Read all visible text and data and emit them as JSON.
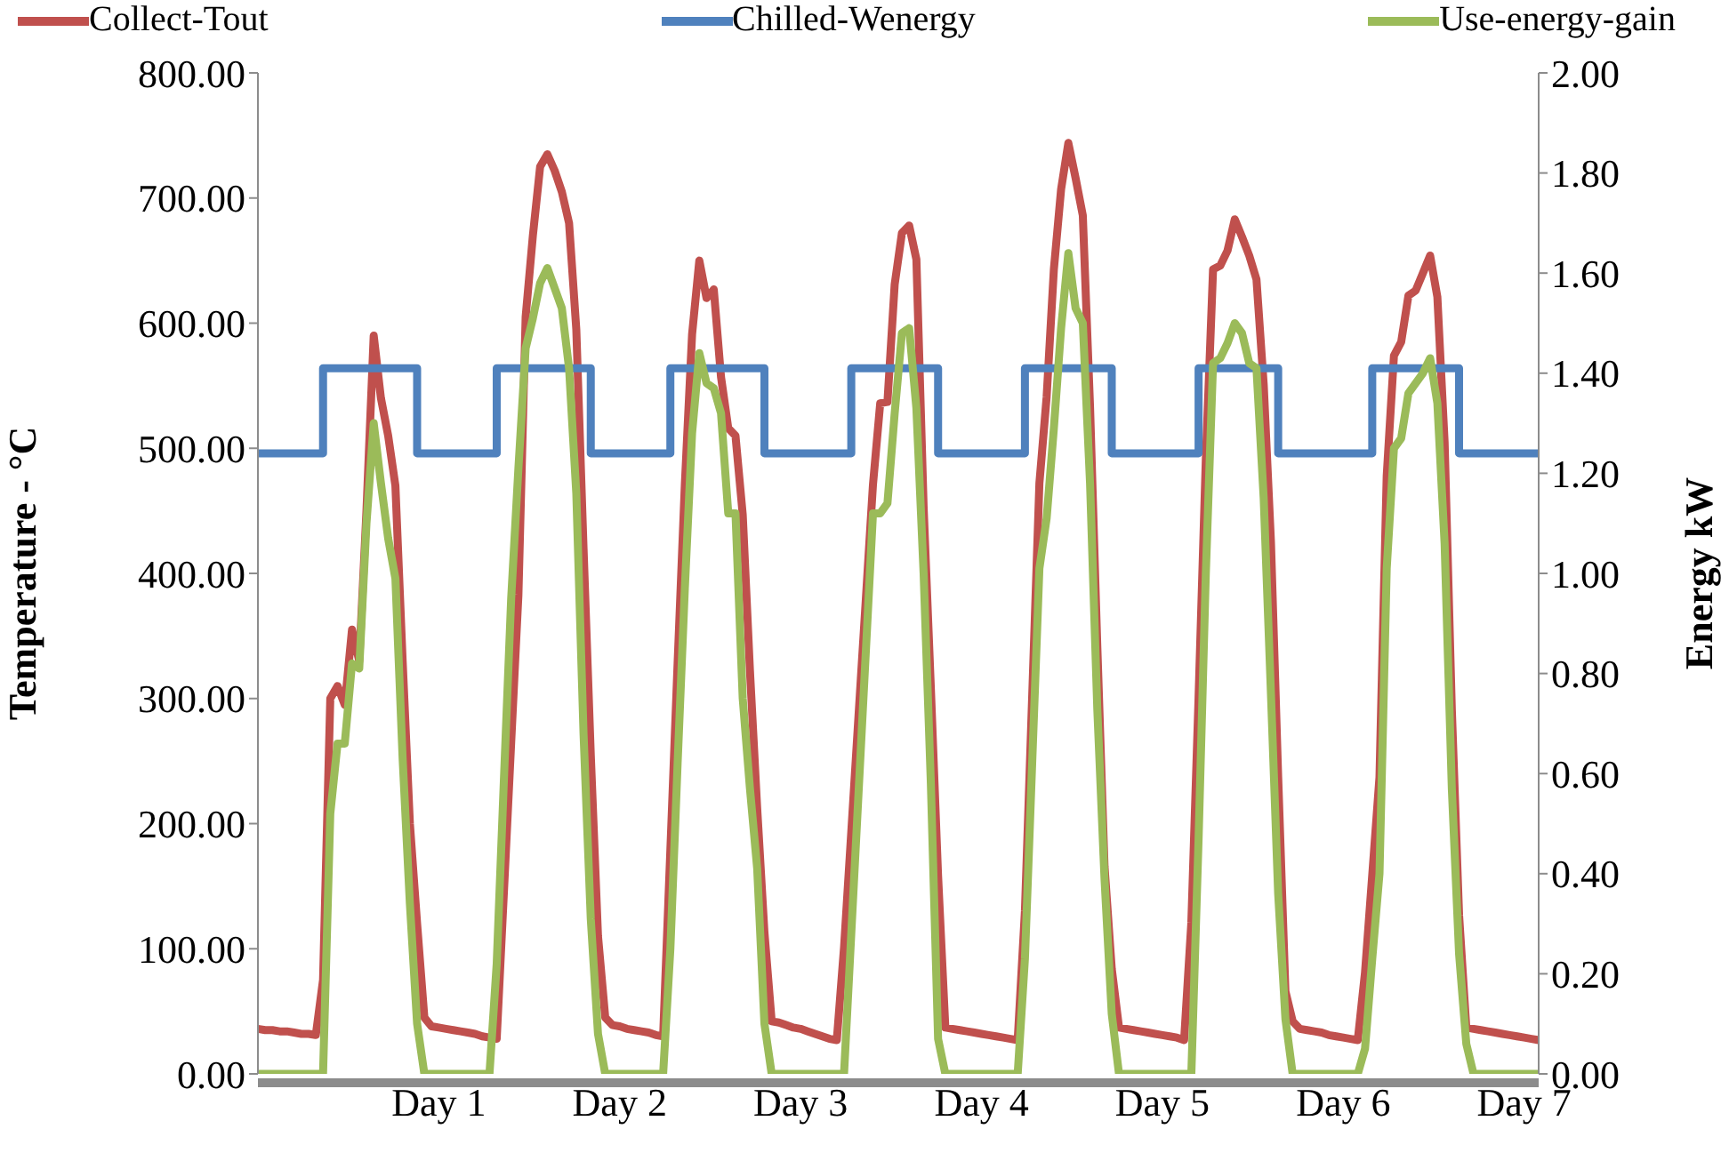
{
  "chart_data": {
    "type": "line",
    "ylabel": "Temperature - °C",
    "y2label": "Energy kW",
    "legend": "top",
    "grid": false,
    "marker": "none",
    "line_style": "solid",
    "categories": [
      null,
      null,
      null,
      null,
      null,
      null,
      null,
      null,
      null,
      null,
      null,
      null,
      null,
      null,
      null,
      null,
      null,
      null,
      null,
      null,
      null,
      null,
      null,
      null,
      null,
      "Day 1",
      null,
      null,
      null,
      null,
      null,
      null,
      null,
      null,
      null,
      null,
      null,
      null,
      null,
      null,
      null,
      null,
      null,
      null,
      null,
      null,
      null,
      null,
      null,
      null,
      "Day 2",
      null,
      null,
      null,
      null,
      null,
      null,
      null,
      null,
      null,
      null,
      null,
      null,
      null,
      null,
      null,
      null,
      null,
      null,
      null,
      null,
      null,
      null,
      null,
      null,
      "Day 3",
      null,
      null,
      null,
      null,
      null,
      null,
      null,
      null,
      null,
      null,
      null,
      null,
      null,
      null,
      null,
      null,
      null,
      null,
      null,
      null,
      null,
      null,
      null,
      null,
      "Day 4",
      null,
      null,
      null,
      null,
      null,
      null,
      null,
      null,
      null,
      null,
      null,
      null,
      null,
      null,
      null,
      null,
      null,
      null,
      null,
      null,
      null,
      null,
      null,
      null,
      "Day 5",
      null,
      null,
      null,
      null,
      null,
      null,
      null,
      null,
      null,
      null,
      null,
      null,
      null,
      null,
      null,
      null,
      null,
      null,
      null,
      null,
      null,
      null,
      null,
      null,
      "Day 6",
      null,
      null,
      null,
      null,
      null,
      null,
      null,
      null,
      null,
      null,
      null,
      null,
      null,
      null,
      null,
      null,
      null,
      null,
      null,
      null,
      null,
      null,
      null,
      null,
      "Day 7",
      null,
      null
    ],
    "ylim": [
      0,
      800
    ],
    "yticks": [
      {
        "value": 0,
        "label": "0.00"
      },
      {
        "value": 100,
        "label": "100.00"
      },
      {
        "value": 200,
        "label": "200.00"
      },
      {
        "value": 300,
        "label": "300.00"
      },
      {
        "value": 400,
        "label": "400.00"
      },
      {
        "value": 500,
        "label": "500.00"
      },
      {
        "value": 600,
        "label": "600.00"
      },
      {
        "value": 700,
        "label": "700.00"
      },
      {
        "value": 800,
        "label": "800.00"
      }
    ],
    "y2lim": [
      0,
      2
    ],
    "y2ticks": [
      {
        "value": 0,
        "label": "0.00"
      },
      {
        "value": 0.2,
        "label": "0.20"
      },
      {
        "value": 0.4,
        "label": "0.40"
      },
      {
        "value": 0.6,
        "label": "0.60"
      },
      {
        "value": 0.8,
        "label": "0.80"
      },
      {
        "value": 1,
        "label": "1.00"
      },
      {
        "value": 1.2,
        "label": "1.20"
      },
      {
        "value": 1.4,
        "label": "1.40"
      },
      {
        "value": 1.6,
        "label": "1.60"
      },
      {
        "value": 1.8,
        "label": "1.80"
      },
      {
        "value": 2,
        "label": "2.00"
      }
    ],
    "series": [
      {
        "name": "Collect-Tout",
        "color": "#c0504d",
        "values": [
          36,
          35,
          35,
          34,
          34,
          33,
          32,
          32,
          31,
          75,
          300,
          310,
          295,
          355,
          330,
          450,
          590,
          540,
          510,
          470,
          330,
          200,
          120,
          45,
          38,
          37,
          36,
          35,
          34,
          33,
          32,
          30,
          29,
          28,
          146,
          265,
          383,
          605,
          670,
          725,
          735,
          722,
          705,
          680,
          595,
          420,
          255,
          110,
          45,
          39,
          38,
          36,
          35,
          34,
          33,
          31,
          30,
          179,
          328,
          471,
          591,
          650,
          620,
          627,
          557,
          516,
          510,
          447,
          322,
          212,
          113,
          42,
          41,
          39,
          37,
          36,
          34,
          32,
          30,
          28,
          27,
          101,
          193,
          286,
          378,
          471,
          536,
          537,
          631,
          672,
          678,
          651,
          453,
          308,
          158,
          37,
          36,
          35,
          34,
          33,
          32,
          31,
          30,
          29,
          28,
          27,
          130,
          301,
          472,
          541,
          643,
          707,
          744,
          716,
          686,
          533,
          342,
          166,
          84,
          37,
          36,
          35,
          34,
          33,
          32,
          31,
          30,
          29,
          27,
          121,
          301,
          491,
          643,
          646,
          658,
          683,
          669,
          654,
          635,
          551,
          425,
          237,
          66,
          42,
          36,
          35,
          34,
          33,
          31,
          30,
          29,
          28,
          27,
          81,
          159,
          237,
          478,
          574,
          585,
          622,
          626,
          640,
          654,
          621,
          505,
          291,
          127,
          37,
          36,
          35,
          34,
          33,
          32,
          31,
          30,
          29,
          28,
          27
        ]
      },
      {
        "name": "Chilled-Wenergy",
        "color": "#4f81bd",
        "type": "step",
        "axis": "y2",
        "values": [
          1.24,
          1.24,
          1.24,
          1.24,
          1.24,
          1.24,
          1.24,
          1.24,
          1.24,
          1.41,
          1.41,
          1.41,
          1.41,
          1.41,
          1.41,
          1.41,
          1.41,
          1.41,
          1.41,
          1.41,
          1.41,
          1.41,
          1.24,
          1.24,
          1.24,
          1.24,
          1.24,
          1.24,
          1.24,
          1.24,
          1.24,
          1.24,
          1.24,
          1.41,
          1.41,
          1.41,
          1.41,
          1.41,
          1.41,
          1.41,
          1.41,
          1.41,
          1.41,
          1.41,
          1.41,
          1.41,
          1.24,
          1.24,
          1.24,
          1.24,
          1.24,
          1.24,
          1.24,
          1.24,
          1.24,
          1.24,
          1.24,
          1.41,
          1.41,
          1.41,
          1.41,
          1.41,
          1.41,
          1.41,
          1.41,
          1.41,
          1.41,
          1.41,
          1.41,
          1.41,
          1.24,
          1.24,
          1.24,
          1.24,
          1.24,
          1.24,
          1.24,
          1.24,
          1.24,
          1.24,
          1.24,
          1.24,
          1.41,
          1.41,
          1.41,
          1.41,
          1.41,
          1.41,
          1.41,
          1.41,
          1.41,
          1.41,
          1.41,
          1.41,
          1.24,
          1.24,
          1.24,
          1.24,
          1.24,
          1.24,
          1.24,
          1.24,
          1.24,
          1.24,
          1.24,
          1.24,
          1.41,
          1.41,
          1.41,
          1.41,
          1.41,
          1.41,
          1.41,
          1.41,
          1.41,
          1.41,
          1.41,
          1.41,
          1.24,
          1.24,
          1.24,
          1.24,
          1.24,
          1.24,
          1.24,
          1.24,
          1.24,
          1.24,
          1.24,
          1.24,
          1.41,
          1.41,
          1.41,
          1.41,
          1.41,
          1.41,
          1.41,
          1.41,
          1.41,
          1.41,
          1.41,
          1.24,
          1.24,
          1.24,
          1.24,
          1.24,
          1.24,
          1.24,
          1.24,
          1.24,
          1.24,
          1.24,
          1.24,
          1.24,
          1.41,
          1.41,
          1.41,
          1.41,
          1.41,
          1.41,
          1.41,
          1.41,
          1.41,
          1.41,
          1.41,
          1.41,
          1.24,
          1.24,
          1.24,
          1.24,
          1.24,
          1.24,
          1.24,
          1.24,
          1.24,
          1.24,
          1.24,
          1.24
        ]
      },
      {
        "name": "Use-energy-gain",
        "color": "#9bbb59",
        "axis": "y2",
        "values": [
          0,
          0,
          0,
          0,
          0,
          0,
          0,
          0,
          0,
          0,
          0.52,
          0.66,
          0.66,
          0.82,
          0.81,
          1.1,
          1.3,
          1.18,
          1.07,
          0.99,
          0.63,
          0.34,
          0.1,
          0,
          0,
          0,
          0,
          0,
          0,
          0,
          0,
          0,
          0,
          0.22,
          0.59,
          0.95,
          1.21,
          1.45,
          1.51,
          1.58,
          1.61,
          1.57,
          1.53,
          1.41,
          1.16,
          0.68,
          0.31,
          0.08,
          0,
          0,
          0,
          0,
          0,
          0,
          0,
          0,
          0,
          0.25,
          0.62,
          0.97,
          1.28,
          1.44,
          1.38,
          1.37,
          1.32,
          1.12,
          1.12,
          0.75,
          0.57,
          0.41,
          0.1,
          0,
          0,
          0,
          0,
          0,
          0,
          0,
          0,
          0,
          0,
          0,
          0.28,
          0.56,
          0.84,
          1.12,
          1.12,
          1.14,
          1.32,
          1.48,
          1.49,
          1.33,
          1,
          0.58,
          0.07,
          0,
          0,
          0,
          0,
          0,
          0,
          0,
          0,
          0,
          0,
          0,
          0.23,
          0.62,
          1.01,
          1.11,
          1.29,
          1.49,
          1.64,
          1.53,
          1.5,
          1.18,
          0.73,
          0.39,
          0.12,
          0,
          0,
          0,
          0,
          0,
          0,
          0,
          0,
          0,
          0,
          0,
          0.47,
          1,
          1.42,
          1.43,
          1.46,
          1.5,
          1.48,
          1.42,
          1.41,
          1.15,
          0.76,
          0.36,
          0.11,
          0,
          0,
          0,
          0,
          0,
          0,
          0,
          0,
          0,
          0,
          0.05,
          0.23,
          0.4,
          1.01,
          1.25,
          1.27,
          1.36,
          1.38,
          1.4,
          1.43,
          1.34,
          1.06,
          0.57,
          0.24,
          0.06,
          0,
          0,
          0,
          0,
          0,
          0,
          0,
          0,
          0,
          0
        ]
      }
    ]
  }
}
